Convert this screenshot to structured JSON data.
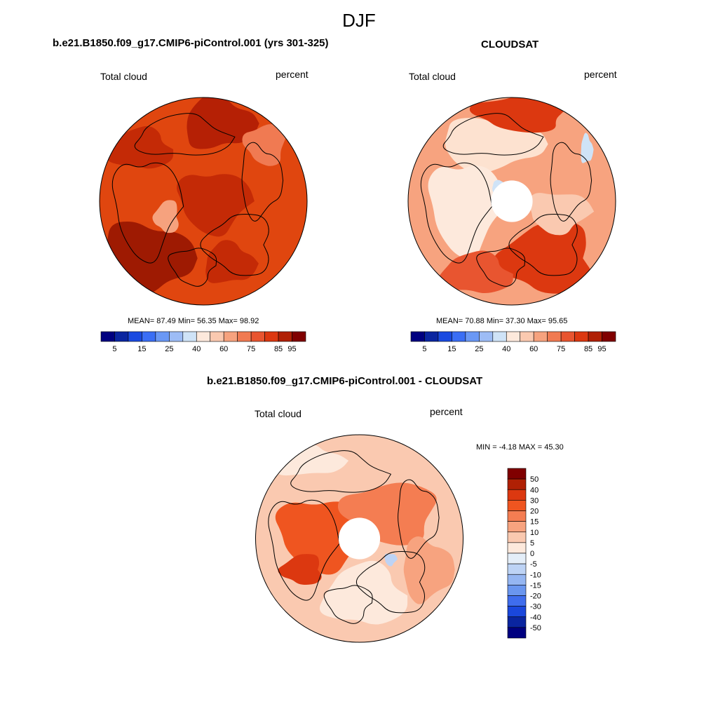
{
  "figure": {
    "season": "DJF"
  },
  "panels": [
    {
      "title": "b.e21.B1850.f09_g17.CMIP6-piControl.001 (yrs 301-325)",
      "left_label": "Total cloud",
      "right_label": "percent",
      "stats": "MEAN=  87.49  Min=  56.35  Max=  98.92",
      "has_hole": false
    },
    {
      "title": "CLOUDSAT",
      "left_label": "Total cloud",
      "right_label": "percent",
      "stats": "MEAN=  70.88  Min=  37.30  Max=  95.65",
      "has_hole": true
    },
    {
      "title": "b.e21.B1850.f09_g17.CMIP6-piControl.001 - CLOUDSAT",
      "left_label": "Total cloud",
      "right_label": "percent",
      "stats": "MIN =  -4.18 MAX =  45.30",
      "has_hole": true
    }
  ],
  "colorbar_abs": {
    "colors": [
      "#000080",
      "#0a25a0",
      "#1a4ae0",
      "#3a6ef5",
      "#6a98f5",
      "#9dbcf5",
      "#cfe3f7",
      "#fde9dc",
      "#fac9b0",
      "#f6a27e",
      "#f07a52",
      "#e85530",
      "#dc3810",
      "#b02004",
      "#800000"
    ],
    "tick_labels": [
      "5",
      "15",
      "25",
      "40",
      "60",
      "75",
      "85",
      "95"
    ]
  },
  "colorbar_diff": {
    "colors": [
      "#800000",
      "#b02004",
      "#dc3810",
      "#ef5520",
      "#f47d52",
      "#f7a37f",
      "#fac9b0",
      "#fde9dc",
      "#e4eef8",
      "#bdd3f5",
      "#95b6f2",
      "#6a96ef",
      "#3f6ded",
      "#1a47dc",
      "#0a25a0",
      "#000080"
    ],
    "tick_labels": [
      "50",
      "40",
      "30",
      "20",
      "15",
      "10",
      "5",
      "0",
      "-5",
      "-10",
      "-15",
      "-20",
      "-30",
      "-40",
      "-50"
    ]
  }
}
